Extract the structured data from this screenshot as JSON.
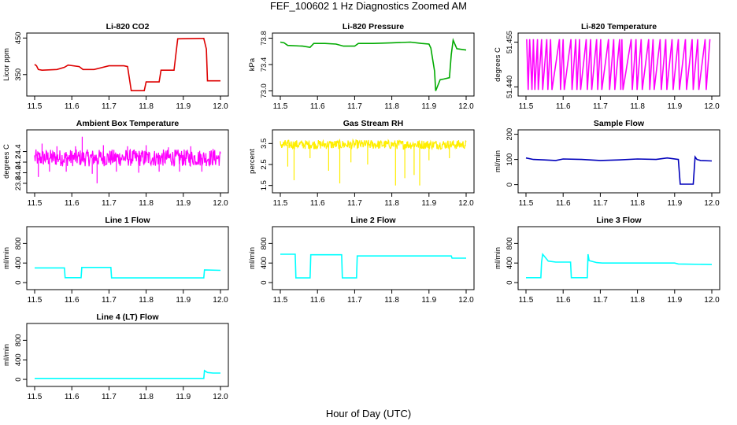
{
  "figure": {
    "title": "FEF_100602  1 Hz Diagnostics Zoomed AM",
    "xlabel": "Hour of Day (UTC)"
  },
  "chart_data": [
    {
      "type": "line",
      "title": "Li-820 CO2",
      "ylabel": "Licor ppm",
      "color": "#dd0000",
      "xlim": [
        11.5,
        12.0
      ],
      "ylim": [
        300,
        455
      ],
      "xticks": [
        "11.5",
        "11.6",
        "11.7",
        "11.8",
        "11.9",
        "12.0"
      ],
      "yticks": [
        "350",
        "450"
      ],
      "ytick_values": [
        350,
        450
      ],
      "series": [
        {
          "name": "CO2",
          "x": [
            11.5,
            11.505,
            11.51,
            11.52,
            11.56,
            11.58,
            11.59,
            11.62,
            11.63,
            11.66,
            11.7,
            11.74,
            11.75,
            11.76,
            11.795,
            11.8,
            11.835,
            11.84,
            11.875,
            11.885,
            11.955,
            11.962,
            11.965,
            12.0
          ],
          "y": [
            378,
            374,
            364,
            362,
            364,
            370,
            376,
            372,
            364,
            364,
            374,
            374,
            372,
            306,
            306,
            330,
            330,
            362,
            362,
            448,
            449,
            420,
            333,
            333
          ]
        }
      ]
    },
    {
      "type": "line",
      "title": "Li-820 Pressure",
      "ylabel": "kPa",
      "color": "#00aa00",
      "xlim": [
        11.5,
        12.0
      ],
      "ylim": [
        72.97,
        73.83
      ],
      "xticks": [
        "11.5",
        "11.6",
        "11.7",
        "11.8",
        "11.9",
        "12.0"
      ],
      "yticks": [
        "73.0",
        "73.4",
        "73.8"
      ],
      "ytick_values": [
        73.0,
        73.4,
        73.8
      ],
      "series": [
        {
          "name": "Pressure",
          "x": [
            11.5,
            11.51,
            11.52,
            11.56,
            11.58,
            11.59,
            11.62,
            11.65,
            11.67,
            11.7,
            11.71,
            11.75,
            11.8,
            11.85,
            11.88,
            11.9,
            11.905,
            11.915,
            11.918,
            11.93,
            11.94,
            11.955,
            11.96,
            11.965,
            11.975,
            12.0
          ],
          "y": [
            73.74,
            73.73,
            73.69,
            73.68,
            73.66,
            73.72,
            73.72,
            73.71,
            73.68,
            73.68,
            73.72,
            73.72,
            73.73,
            73.74,
            73.72,
            73.71,
            73.65,
            73.3,
            73.0,
            73.17,
            73.18,
            73.2,
            73.55,
            73.77,
            73.64,
            73.62
          ]
        }
      ]
    },
    {
      "type": "line",
      "title": "Li-820 Temperature",
      "ylabel": "degrees C",
      "color": "#ff00ff",
      "xlim": [
        11.5,
        12.0
      ],
      "ylim": [
        51.438,
        51.457
      ],
      "xticks": [
        "11.5",
        "11.6",
        "11.7",
        "11.8",
        "11.9",
        "12.0"
      ],
      "yticks": [
        "51.440",
        "51.455"
      ],
      "ytick_values": [
        51.44,
        51.455
      ],
      "series": [
        {
          "name": "Temperature",
          "x": [
            11.502,
            11.506,
            11.51,
            11.516,
            11.52,
            11.524,
            11.531,
            11.533,
            11.542,
            11.545,
            11.556,
            11.559,
            11.566,
            11.57,
            11.59,
            11.593,
            11.6,
            11.603,
            11.621,
            11.624,
            11.634,
            11.637,
            11.644,
            11.647,
            11.662,
            11.665,
            11.674,
            11.677,
            11.69,
            11.693,
            11.701,
            11.704,
            11.722,
            11.725,
            11.736,
            11.739,
            11.752,
            11.755,
            11.758,
            11.761,
            11.783,
            11.786,
            11.796,
            11.799,
            11.81,
            11.813,
            11.83,
            11.833,
            11.842,
            11.845,
            11.861,
            11.864,
            11.876,
            11.879,
            11.893,
            11.896,
            11.91,
            11.913,
            11.929,
            11.932,
            11.947,
            11.95,
            11.962,
            11.965,
            11.982,
            11.985,
            11.995
          ],
          "y": [
            51.456,
            51.439,
            51.456,
            51.439,
            51.456,
            51.439,
            51.456,
            51.439,
            51.456,
            51.439,
            51.456,
            51.439,
            51.456,
            51.439,
            51.456,
            51.439,
            51.456,
            51.439,
            51.456,
            51.439,
            51.456,
            51.439,
            51.456,
            51.439,
            51.456,
            51.439,
            51.456,
            51.439,
            51.456,
            51.439,
            51.456,
            51.439,
            51.456,
            51.439,
            51.456,
            51.439,
            51.456,
            51.439,
            51.456,
            51.439,
            51.456,
            51.439,
            51.456,
            51.439,
            51.456,
            51.439,
            51.456,
            51.439,
            51.456,
            51.439,
            51.456,
            51.439,
            51.456,
            51.439,
            51.456,
            51.439,
            51.456,
            51.439,
            51.456,
            51.439,
            51.456,
            51.439,
            51.456,
            51.439,
            51.456,
            51.439,
            51.456
          ]
        }
      ]
    },
    {
      "type": "line",
      "title": "Ambient Box Temperature",
      "ylabel": "degrees C",
      "color": "#ff00ff",
      "xlim": [
        11.5,
        12.0
      ],
      "ylim": [
        23.68,
        24.75
      ],
      "xticks": [
        "11.5",
        "11.6",
        "11.7",
        "11.8",
        "11.9",
        "12.0"
      ],
      "yticks": [
        "23.8",
        "24.0",
        "24.2",
        "24.4"
      ],
      "ytick_values": [
        23.8,
        24.0,
        24.2,
        24.4
      ],
      "series": [
        {
          "name": "Ambient",
          "x_start": 11.5,
          "x_end": 12.0,
          "center": 24.28,
          "band": 0.16,
          "spikes": [
            [
              11.51,
              23.92
            ],
            [
              11.52,
              24.55
            ],
            [
              11.54,
              24.02
            ],
            [
              11.56,
              24.5
            ],
            [
              11.585,
              24.02
            ],
            [
              11.61,
              24.5
            ],
            [
              11.628,
              24.68
            ],
            [
              11.655,
              23.98
            ],
            [
              11.668,
              23.8
            ],
            [
              11.685,
              24.52
            ],
            [
              11.72,
              24.02
            ],
            [
              11.75,
              24.5
            ],
            [
              11.78,
              24.0
            ],
            [
              11.8,
              24.52
            ],
            [
              11.835,
              24.02
            ],
            [
              11.86,
              24.48
            ],
            [
              11.89,
              24.02
            ],
            [
              11.92,
              24.5
            ],
            [
              11.95,
              24.02
            ],
            [
              11.98,
              24.45
            ]
          ]
        }
      ]
    },
    {
      "type": "line",
      "title": "Gas Stream RH",
      "ylabel": "percent",
      "color": "#ffee00",
      "xlim": [
        11.5,
        12.0
      ],
      "ylim": [
        1.3,
        4.0
      ],
      "xticks": [
        "11.5",
        "11.6",
        "11.7",
        "11.8",
        "11.9",
        "12.0"
      ],
      "yticks": [
        "1.5",
        "2.5",
        "3.5"
      ],
      "ytick_values": [
        1.5,
        2.5,
        3.5
      ],
      "series": [
        {
          "name": "RH",
          "x_start": 11.5,
          "x_end": 12.0,
          "center": 3.45,
          "band": 0.22,
          "spikes": [
            [
              11.52,
              2.4
            ],
            [
              11.537,
              1.75
            ],
            [
              11.58,
              2.8
            ],
            [
              11.63,
              2.2
            ],
            [
              11.66,
              1.6
            ],
            [
              11.69,
              2.6
            ],
            [
              11.735,
              2.5
            ],
            [
              11.81,
              1.5
            ],
            [
              11.835,
              1.85
            ],
            [
              11.86,
              2.0
            ],
            [
              11.875,
              1.5
            ],
            [
              11.9,
              2.7
            ],
            [
              11.955,
              2.8
            ]
          ]
        }
      ]
    },
    {
      "type": "line",
      "title": "Sample Flow",
      "ylabel": "ml/min",
      "color": "#0000bb",
      "xlim": [
        11.5,
        12.0
      ],
      "ylim": [
        -20,
        205
      ],
      "xticks": [
        "11.5",
        "11.6",
        "11.7",
        "11.8",
        "11.9",
        "12.0"
      ],
      "yticks": [
        "0",
        "100",
        "200"
      ],
      "ytick_values": [
        0,
        100,
        200
      ],
      "series": [
        {
          "name": "Sample Flow",
          "x": [
            11.5,
            11.52,
            11.55,
            11.58,
            11.6,
            11.65,
            11.7,
            11.75,
            11.8,
            11.85,
            11.88,
            11.91,
            11.915,
            11.95,
            11.955,
            11.96,
            11.97,
            12.0
          ],
          "y": [
            106,
            100,
            98,
            96,
            102,
            100,
            96,
            98,
            102,
            100,
            106,
            100,
            2,
            2,
            110,
            100,
            96,
            94
          ]
        }
      ]
    },
    {
      "type": "line",
      "title": "Line 1 Flow",
      "ylabel": "ml/min",
      "color": "#00ffff",
      "xlim": [
        11.5,
        12.0
      ],
      "ylim": [
        -80,
        1080
      ],
      "xticks": [
        "11.5",
        "11.6",
        "11.7",
        "11.8",
        "11.9",
        "12.0"
      ],
      "yticks": [
        "0",
        "400",
        "800"
      ],
      "ytick_values": [
        0,
        400,
        800
      ],
      "series": [
        {
          "name": "Line 1",
          "x": [
            11.5,
            11.58,
            11.582,
            11.625,
            11.627,
            11.705,
            11.707,
            11.955,
            11.957,
            12.0
          ],
          "y": [
            300,
            300,
            100,
            100,
            310,
            310,
            95,
            95,
            260,
            250
          ]
        }
      ]
    },
    {
      "type": "line",
      "title": "Line 2 Flow",
      "ylabel": "ml/min",
      "color": "#00ffff",
      "xlim": [
        11.5,
        12.0
      ],
      "ylim": [
        -80,
        1080
      ],
      "xticks": [
        "11.5",
        "11.6",
        "11.7",
        "11.8",
        "11.9",
        "12.0"
      ],
      "yticks": [
        "0",
        "400",
        "800"
      ],
      "ytick_values": [
        0,
        400,
        800
      ],
      "series": [
        {
          "name": "Line 2",
          "x": [
            11.5,
            11.54,
            11.542,
            11.58,
            11.582,
            11.665,
            11.667,
            11.705,
            11.707,
            11.96,
            11.962,
            12.0
          ],
          "y": [
            580,
            580,
            95,
            95,
            570,
            570,
            95,
            95,
            545,
            545,
            500,
            500
          ]
        }
      ]
    },
    {
      "type": "line",
      "title": "Line 3 Flow",
      "ylabel": "ml/min",
      "color": "#00ffff",
      "xlim": [
        11.5,
        12.0
      ],
      "ylim": [
        -80,
        1080
      ],
      "xticks": [
        "11.5",
        "11.6",
        "11.7",
        "11.8",
        "11.9",
        "12.0"
      ],
      "yticks": [
        "0",
        "400",
        "800"
      ],
      "ytick_values": [
        0,
        400,
        800
      ],
      "series": [
        {
          "name": "Line 3",
          "x": [
            11.5,
            11.54,
            11.542,
            11.545,
            11.56,
            11.58,
            11.62,
            11.622,
            11.665,
            11.667,
            11.67,
            11.69,
            11.705,
            11.9,
            11.91,
            12.0
          ],
          "y": [
            100,
            100,
            420,
            580,
            440,
            420,
            420,
            100,
            100,
            580,
            450,
            410,
            400,
            400,
            380,
            370
          ]
        }
      ]
    },
    {
      "type": "line",
      "title": "Line 4 (LT) Flow",
      "ylabel": "ml/min",
      "color": "#00ffff",
      "xlim": [
        11.5,
        12.0
      ],
      "ylim": [
        -80,
        1080
      ],
      "xticks": [
        "11.5",
        "11.6",
        "11.7",
        "11.8",
        "11.9",
        "12.0"
      ],
      "yticks": [
        "0",
        "400",
        "800"
      ],
      "ytick_values": [
        0,
        400,
        800
      ],
      "series": [
        {
          "name": "Line 4",
          "x": [
            11.5,
            11.955,
            11.957,
            11.965,
            11.98,
            12.0
          ],
          "y": [
            20,
            20,
            180,
            140,
            130,
            130
          ]
        }
      ]
    }
  ]
}
